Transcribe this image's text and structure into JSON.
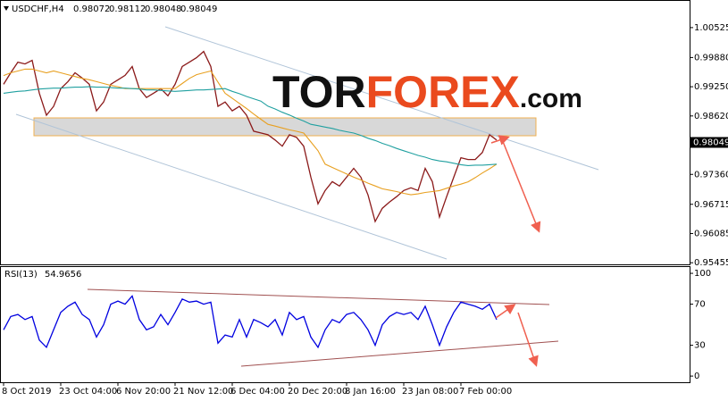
{
  "chart_data": [
    {
      "type": "line",
      "symbol": "USDCHF,H4",
      "ohlc": [
        0.98072,
        0.98112,
        0.98048,
        0.98049
      ],
      "watermark": [
        "TOR",
        "FOREX",
        ".com"
      ],
      "categories": [
        "8 Oct 2019",
        null,
        null,
        null,
        null,
        null,
        null,
        null,
        "23 Oct 04:00",
        null,
        null,
        null,
        null,
        null,
        null,
        null,
        "6 Nov 20:00",
        null,
        null,
        null,
        null,
        null,
        null,
        null,
        "21 Nov 12:00",
        null,
        null,
        null,
        null,
        null,
        null,
        null,
        "6 Dec 04:00",
        null,
        null,
        null,
        null,
        null,
        null,
        null,
        "20 Dec 20:00",
        null,
        null,
        null,
        null,
        null,
        null,
        null,
        "8 Jan 16:00",
        null,
        null,
        null,
        null,
        null,
        null,
        null,
        "23 Jan 08:00",
        null,
        null,
        null,
        null,
        null,
        null,
        null,
        "7 Feb 00:00",
        null,
        null,
        null,
        null,
        null
      ],
      "series": [
        {
          "color": "#8b1a1a",
          "values": [
            0.99303,
            0.99551,
            0.9978,
            0.99742,
            0.99819,
            0.99112,
            0.98635,
            0.98826,
            0.99208,
            0.9936,
            0.99551,
            0.99437,
            0.99303,
            0.9873,
            0.98921,
            0.99303,
            0.99399,
            0.99494,
            0.99685,
            0.99208,
            0.99017,
            0.99112,
            0.99208,
            0.99055,
            0.99303,
            0.99685,
            0.9978,
            0.99876,
            1.0001,
            0.99685,
            0.98826,
            0.98921,
            0.9873,
            0.98826,
            0.98635,
            0.98291,
            0.98253,
            0.98215,
            0.981,
            0.97967,
            0.98215,
            0.98158,
            0.97967,
            0.97299,
            0.96726,
            0.97012,
            0.97203,
            0.97108,
            0.97299,
            0.9749,
            0.97299,
            0.96917,
            0.96344,
            0.9663,
            0.96764,
            0.96879,
            0.97012,
            0.9707,
            0.97012,
            0.9749,
            0.97203,
            0.9644,
            0.96879,
            0.97299,
            0.97719,
            0.9768,
            0.9768,
            0.97833,
            0.98215,
            0.981
          ]
        },
        {
          "color": "#e8a020",
          "values": [
            0.9949,
            0.9955,
            0.9959,
            0.9963,
            0.9963,
            0.9959,
            0.9955,
            0.9959,
            0.9955,
            0.9951,
            0.9947,
            0.9943,
            0.994,
            0.9936,
            0.9932,
            0.9928,
            0.9925,
            0.9921,
            0.9921,
            0.9921,
            0.9921,
            0.9921,
            0.9921,
            0.9921,
            0.9921,
            0.9932,
            0.9943,
            0.9951,
            0.9955,
            0.9959,
            0.9935,
            0.9911,
            0.99,
            0.9889,
            0.9878,
            0.9866,
            0.9855,
            0.9844,
            0.984,
            0.9836,
            0.9832,
            0.9829,
            0.9825,
            0.9806,
            0.9787,
            0.9758,
            0.9751,
            0.9744,
            0.9737,
            0.973,
            0.9724,
            0.9717,
            0.9711,
            0.9705,
            0.9702,
            0.9699,
            0.9695,
            0.9692,
            0.9694,
            0.9697,
            0.9699,
            0.9701,
            0.9706,
            0.9711,
            0.9715,
            0.972,
            0.9729,
            0.9739,
            0.9748,
            0.9758
          ]
        },
        {
          "color": "#20a0a0",
          "values": [
            0.9911,
            0.9913,
            0.9915,
            0.9916,
            0.9918,
            0.992,
            0.9921,
            0.9922,
            0.9922,
            0.9923,
            0.9924,
            0.9924,
            0.9925,
            0.9924,
            0.9924,
            0.9923,
            0.9922,
            0.9922,
            0.9921,
            0.992,
            0.9918,
            0.9918,
            0.9917,
            0.9916,
            0.9915,
            0.9916,
            0.9917,
            0.9918,
            0.9918,
            0.9919,
            0.992,
            0.9921,
            0.9915,
            0.991,
            0.9904,
            0.9899,
            0.9894,
            0.9883,
            0.9877,
            0.987,
            0.9864,
            0.9857,
            0.9851,
            0.9844,
            0.9841,
            0.9838,
            0.9835,
            0.9831,
            0.9828,
            0.9825,
            0.982,
            0.9814,
            0.9809,
            0.9803,
            0.9798,
            0.9792,
            0.9787,
            0.9782,
            0.9777,
            0.9773,
            0.9768,
            0.9765,
            0.9763,
            0.976,
            0.9757,
            0.9755,
            0.9756,
            0.9756,
            0.9757,
            0.9758
          ]
        }
      ],
      "ylim": [
        0.9542,
        1.0112
      ],
      "yticks": [
        1.00525,
        {
          "value": 0.9988,
          "label": "0.99880"
        },
        {
          "value": 0.9925,
          "label": "0.99250"
        },
        {
          "value": 0.9862,
          "label": "0.98620"
        },
        {
          "value": 0.9736,
          "label": "0.97360"
        },
        0.96715,
        0.96085,
        0.95455
      ]
    },
    {
      "type": "line",
      "title": "RSI(13)",
      "last_value": 54.9656,
      "series": [
        {
          "color": "#0000e0",
          "values": [
            45,
            58,
            60,
            55,
            58,
            35,
            28,
            45,
            62,
            68,
            72,
            60,
            55,
            38,
            50,
            70,
            73,
            70,
            78,
            55,
            45,
            48,
            60,
            50,
            62,
            75,
            72,
            73,
            70,
            72,
            32,
            40,
            38,
            55,
            38,
            55,
            52,
            48,
            55,
            40,
            62,
            55,
            58,
            38,
            28,
            45,
            55,
            52,
            60,
            62,
            55,
            45,
            30,
            50,
            58,
            62,
            60,
            62,
            55,
            68,
            50,
            30,
            48,
            62,
            72,
            70,
            68,
            65,
            70,
            55
          ]
        }
      ],
      "ylim": [
        -6,
        107
      ],
      "yticks": [
        100,
        70,
        30,
        0
      ]
    }
  ]
}
